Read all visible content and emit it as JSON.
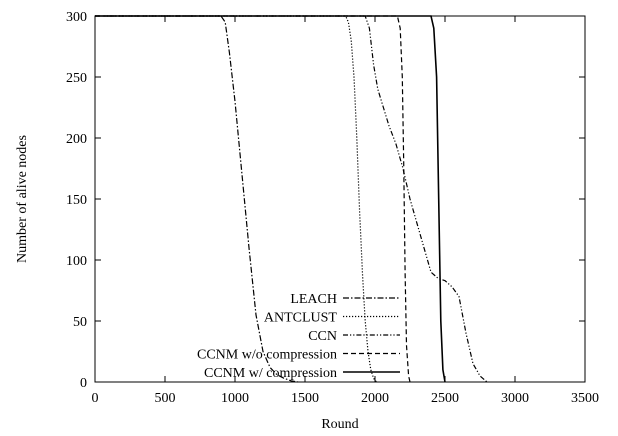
{
  "chart_data": {
    "type": "line",
    "title": "",
    "xlabel": "Round",
    "ylabel": "Number of alive nodes",
    "xlim": [
      0,
      3500
    ],
    "ylim": [
      0,
      300
    ],
    "xticks": [
      0,
      500,
      1000,
      1500,
      2000,
      2500,
      3000,
      3500
    ],
    "yticks": [
      0,
      50,
      100,
      150,
      200,
      250,
      300
    ],
    "grid": false,
    "legend_position": "bottom-left",
    "series": [
      {
        "name": "LEACH",
        "dash": "dash-dot",
        "points": [
          [
            0,
            300
          ],
          [
            900,
            300
          ],
          [
            930,
            295
          ],
          [
            960,
            270
          ],
          [
            1000,
            230
          ],
          [
            1050,
            170
          ],
          [
            1100,
            110
          ],
          [
            1150,
            55
          ],
          [
            1200,
            25
          ],
          [
            1250,
            12
          ],
          [
            1300,
            6
          ],
          [
            1350,
            3
          ],
          [
            1400,
            1
          ],
          [
            1450,
            0
          ]
        ]
      },
      {
        "name": "ANTCLUST",
        "dash": "dotted",
        "points": [
          [
            0,
            300
          ],
          [
            1790,
            300
          ],
          [
            1810,
            295
          ],
          [
            1830,
            280
          ],
          [
            1850,
            250
          ],
          [
            1870,
            200
          ],
          [
            1890,
            140
          ],
          [
            1910,
            90
          ],
          [
            1930,
            50
          ],
          [
            1950,
            25
          ],
          [
            1970,
            10
          ],
          [
            1990,
            3
          ],
          [
            2010,
            0
          ]
        ]
      },
      {
        "name": "CCN",
        "dash": "dash-dot-dot",
        "points": [
          [
            0,
            300
          ],
          [
            1930,
            300
          ],
          [
            1960,
            290
          ],
          [
            1990,
            260
          ],
          [
            2020,
            240
          ],
          [
            2060,
            225
          ],
          [
            2100,
            210
          ],
          [
            2150,
            195
          ],
          [
            2200,
            175
          ],
          [
            2250,
            150
          ],
          [
            2300,
            130
          ],
          [
            2350,
            110
          ],
          [
            2400,
            90
          ],
          [
            2450,
            85
          ],
          [
            2500,
            83
          ],
          [
            2550,
            78
          ],
          [
            2600,
            70
          ],
          [
            2650,
            40
          ],
          [
            2700,
            15
          ],
          [
            2750,
            5
          ],
          [
            2800,
            0
          ]
        ]
      },
      {
        "name": "CCNM w/o compression",
        "dash": "dashed",
        "points": [
          [
            0,
            300
          ],
          [
            2160,
            300
          ],
          [
            2180,
            290
          ],
          [
            2195,
            250
          ],
          [
            2205,
            180
          ],
          [
            2215,
            90
          ],
          [
            2225,
            30
          ],
          [
            2240,
            5
          ],
          [
            2250,
            0
          ]
        ]
      },
      {
        "name": "CCNM w/ compression",
        "dash": "solid",
        "points": [
          [
            0,
            300
          ],
          [
            2400,
            300
          ],
          [
            2420,
            290
          ],
          [
            2440,
            250
          ],
          [
            2455,
            150
          ],
          [
            2470,
            50
          ],
          [
            2485,
            10
          ],
          [
            2500,
            0
          ]
        ]
      }
    ]
  }
}
